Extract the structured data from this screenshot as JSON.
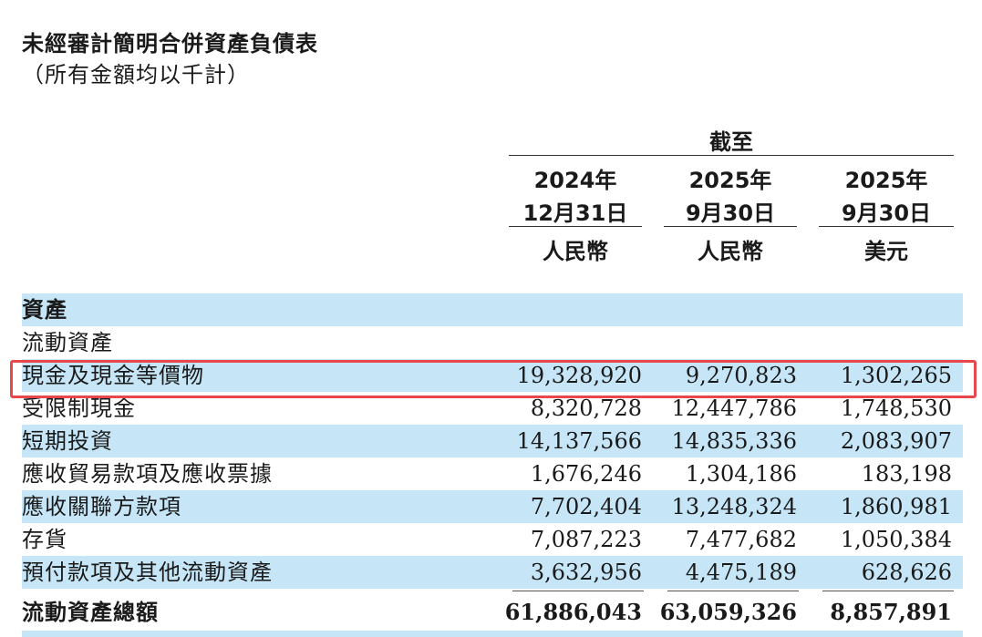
{
  "title": "未經審計簡明合併資產負債表",
  "subtitle": "（所有金額均以千計）",
  "header": {
    "as_of": "截至",
    "columns": [
      {
        "year": "2024年",
        "date": "12月31日",
        "currency": "人民幣"
      },
      {
        "year": "2025年",
        "date": "9月30日",
        "currency": "人民幣"
      },
      {
        "year": "2025年",
        "date": "9月30日",
        "currency": "美元"
      }
    ]
  },
  "section": "資產",
  "subsection": "流動資產",
  "rows": [
    {
      "label": "現金及現金等價物",
      "v1": "19,328,920",
      "v2": "9,270,823",
      "v3": "1,302,265"
    },
    {
      "label": "受限制現金",
      "v1": "8,320,728",
      "v2": "12,447,786",
      "v3": "1,748,530"
    },
    {
      "label": "短期投資",
      "v1": "14,137,566",
      "v2": "14,835,336",
      "v3": "2,083,907"
    },
    {
      "label": "應收貿易款項及應收票據",
      "v1": "1,676,246",
      "v2": "1,304,186",
      "v3": "183,198"
    },
    {
      "label": "應收關聯方款項",
      "v1": "7,702,404",
      "v2": "13,248,324",
      "v3": "1,860,981"
    },
    {
      "label": "存貨",
      "v1": "7,087,223",
      "v2": "7,477,682",
      "v3": "1,050,384"
    },
    {
      "label": "預付款項及其他流動資產",
      "v1": "3,632,956",
      "v2": "4,475,189",
      "v3": "628,626"
    }
  ],
  "total": {
    "label": "流動資產總額",
    "v1": "61,886,043",
    "v2": "63,059,326",
    "v3": "8,857,891"
  },
  "colors": {
    "shade": "#c6e6f7",
    "highlight": "#e8474c"
  }
}
